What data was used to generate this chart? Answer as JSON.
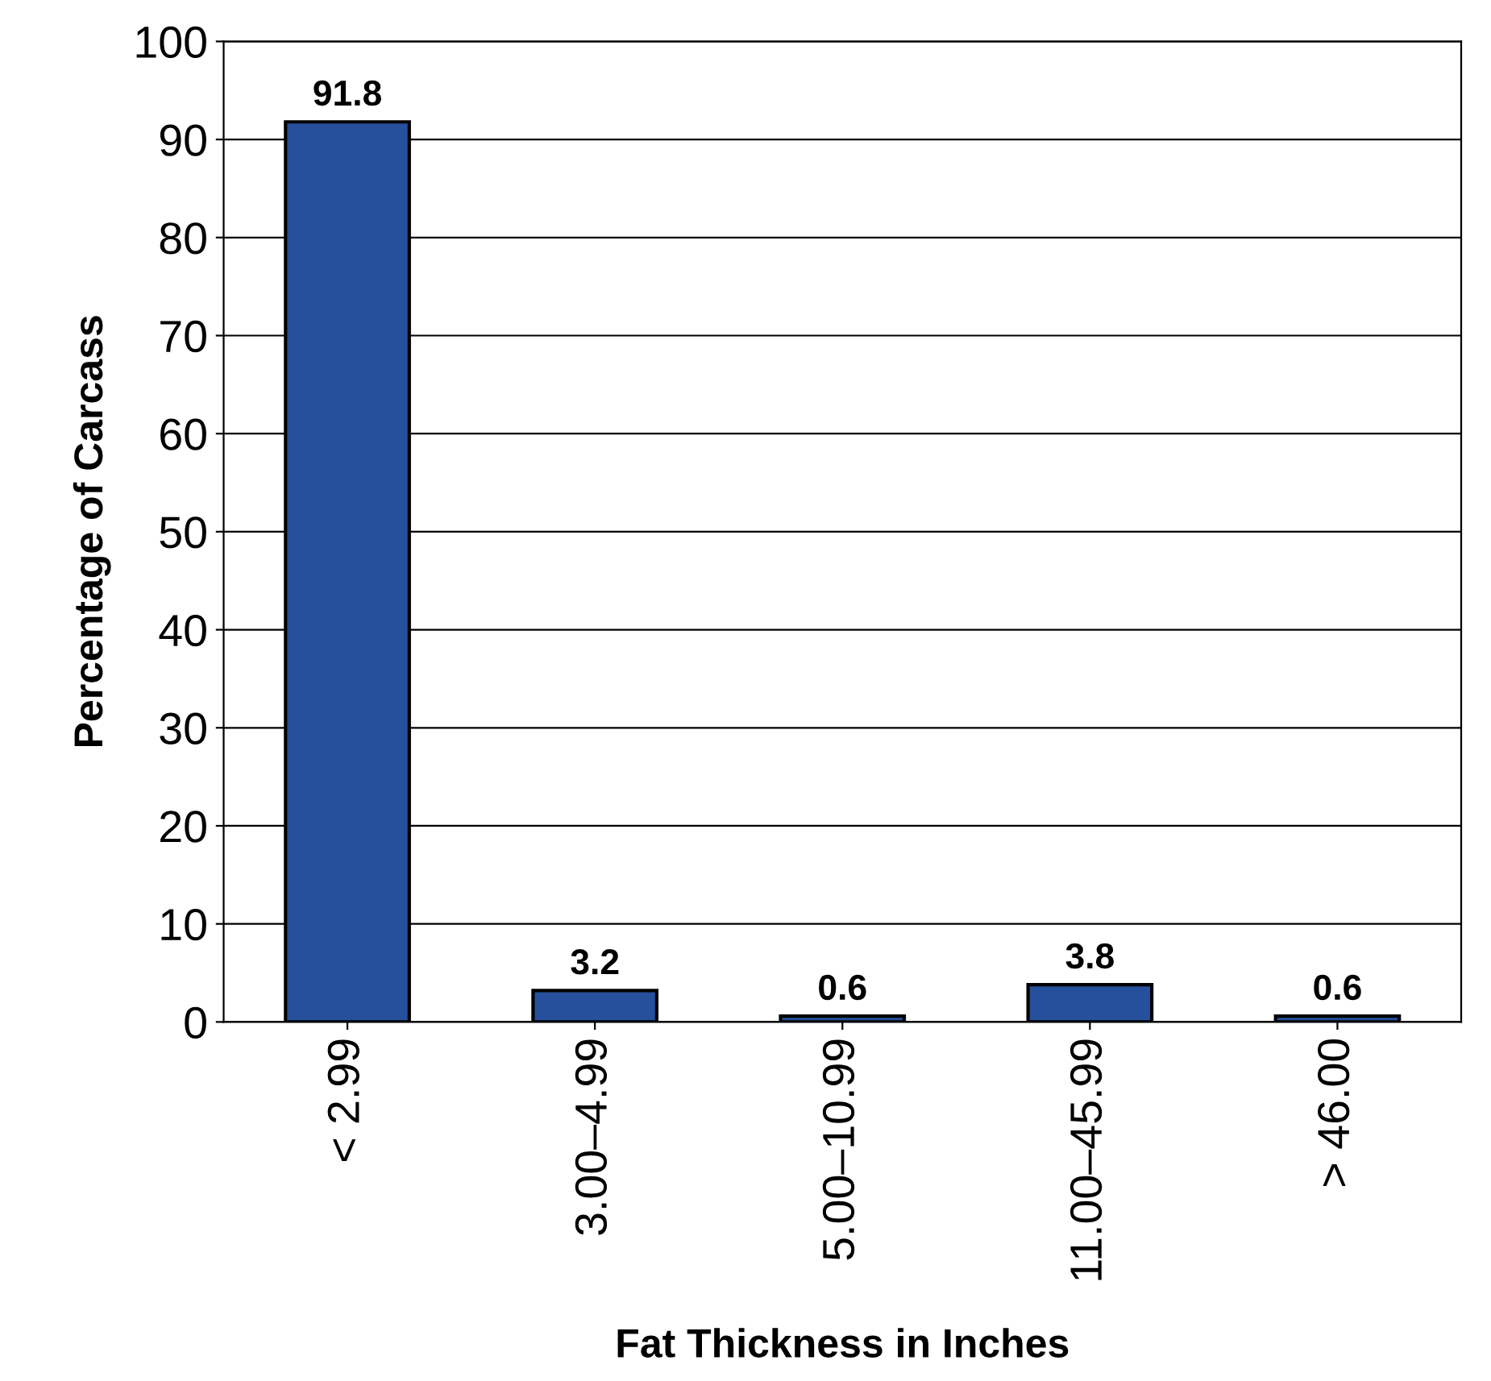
{
  "chart_data": {
    "type": "bar",
    "xlabel": "Fat Thickness in Inches",
    "ylabel": "Percentage of Carcass",
    "categories": [
      "< 2.99",
      "3.00–4.99",
      "5.00–10.99",
      "11.00–45.99",
      "> 46.00"
    ],
    "values": [
      91.8,
      3.2,
      0.6,
      3.8,
      0.6
    ],
    "color": "#26509b",
    "ylim": [
      0,
      100
    ],
    "yticks": [
      0,
      10,
      20,
      30,
      40,
      50,
      60,
      70,
      80,
      90,
      100
    ],
    "grid": "y",
    "data_labels": true
  }
}
